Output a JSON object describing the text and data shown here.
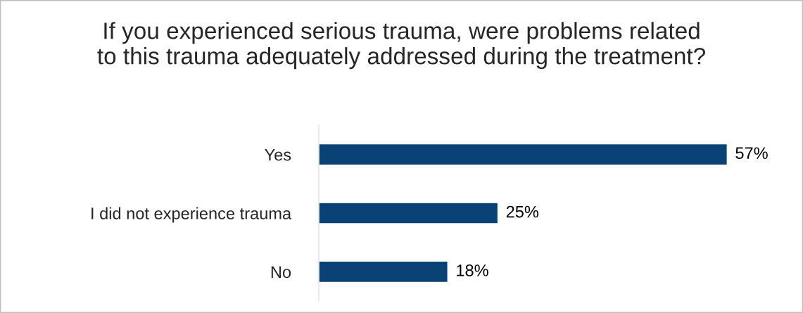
{
  "chart_data": {
    "type": "bar",
    "orientation": "horizontal",
    "title": "If you experienced serious trauma, were problems related to this trauma adequately addressed during the treatment?",
    "categories": [
      "Yes",
      "I did not experience trauma",
      "No"
    ],
    "values": [
      57,
      25,
      18
    ],
    "value_labels": [
      "57%",
      "25%",
      "18%"
    ],
    "color": "#0a4275",
    "grid": false,
    "legend": false
  }
}
